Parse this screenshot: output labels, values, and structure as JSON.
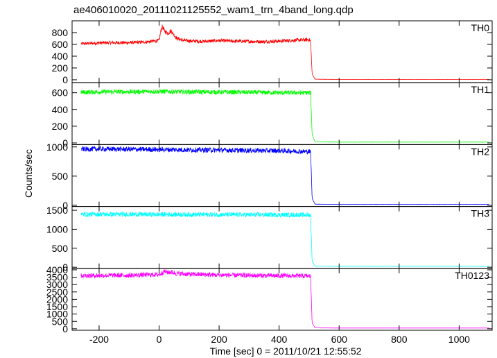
{
  "chart_data": {
    "type": "line",
    "title": "ae406010020_20111021125552_wam1_trn_4band_long.qdp",
    "xlabel": "Time [sec] 0 = 2011/10/21 12:55:52",
    "ylabel": "Counts/sec",
    "xlim": [
      -290,
      1110
    ],
    "xticks": [
      -200,
      0,
      200,
      400,
      600,
      800,
      1000
    ],
    "grid": false,
    "panels": [
      {
        "name": "TH0",
        "color": "#ff0000",
        "ylim": [
          -50,
          1000
        ],
        "yticks": [
          0,
          200,
          400,
          600,
          800
        ],
        "series": {
          "x": [
            -260,
            -200,
            -150,
            -100,
            -50,
            0,
            5,
            10,
            15,
            20,
            30,
            40,
            50,
            60,
            80,
            100,
            150,
            200,
            250,
            300,
            350,
            400,
            450,
            500,
            505,
            510,
            520,
            600,
            700,
            800,
            900,
            1000,
            1100
          ],
          "y": [
            610,
            625,
            630,
            628,
            640,
            665,
            810,
            900,
            860,
            820,
            790,
            830,
            760,
            700,
            670,
            660,
            650,
            665,
            655,
            650,
            645,
            655,
            670,
            680,
            650,
            100,
            10,
            5,
            5,
            5,
            5,
            5,
            5
          ]
        }
      },
      {
        "name": "TH1",
        "color": "#00ff00",
        "ylim": [
          -20,
          720
        ],
        "yticks": [
          0,
          200,
          400,
          600
        ],
        "series": {
          "x": [
            -260,
            -200,
            -100,
            0,
            100,
            200,
            300,
            400,
            500,
            505,
            510,
            520,
            600,
            700,
            800,
            900,
            1000,
            1100
          ],
          "y": [
            605,
            610,
            612,
            615,
            610,
            608,
            605,
            600,
            600,
            595,
            100,
            12,
            10,
            10,
            10,
            10,
            10,
            10
          ]
        }
      },
      {
        "name": "TH2",
        "color": "#0000ff",
        "ylim": [
          -20,
          1040
        ],
        "yticks": [
          0,
          500,
          1000
        ],
        "series": {
          "x": [
            -260,
            -200,
            -100,
            0,
            100,
            200,
            300,
            400,
            500,
            505,
            510,
            520,
            600,
            700,
            800,
            900,
            1000,
            1100
          ],
          "y": [
            960,
            965,
            960,
            955,
            950,
            945,
            940,
            935,
            920,
            915,
            120,
            20,
            15,
            15,
            15,
            15,
            15,
            15
          ]
        }
      },
      {
        "name": "TH3",
        "color": "#00ffff",
        "ylim": [
          -30,
          1600
        ],
        "yticks": [
          0,
          500,
          1000,
          1500
        ],
        "series": {
          "x": [
            -260,
            -200,
            -100,
            0,
            100,
            200,
            300,
            400,
            500,
            505,
            510,
            520,
            600,
            700,
            800,
            900,
            1000,
            1100
          ],
          "y": [
            1390,
            1395,
            1392,
            1390,
            1388,
            1385,
            1382,
            1380,
            1378,
            1375,
            150,
            30,
            25,
            25,
            25,
            25,
            25,
            25
          ]
        }
      },
      {
        "name": "TH0123",
        "color": "#ff00ff",
        "ylim": [
          -100,
          4100
        ],
        "yticks": [
          0,
          500,
          1000,
          1500,
          2000,
          2500,
          3000,
          3500,
          4000
        ],
        "series": {
          "x": [
            -260,
            -200,
            -100,
            0,
            10,
            20,
            30,
            40,
            60,
            100,
            200,
            300,
            400,
            500,
            505,
            510,
            520,
            600,
            700,
            800,
            900,
            1000,
            1100
          ],
          "y": [
            3600,
            3620,
            3630,
            3680,
            3800,
            3900,
            3820,
            3850,
            3750,
            3700,
            3650,
            3620,
            3600,
            3580,
            3560,
            400,
            60,
            50,
            50,
            50,
            50,
            50,
            50
          ]
        }
      }
    ]
  }
}
